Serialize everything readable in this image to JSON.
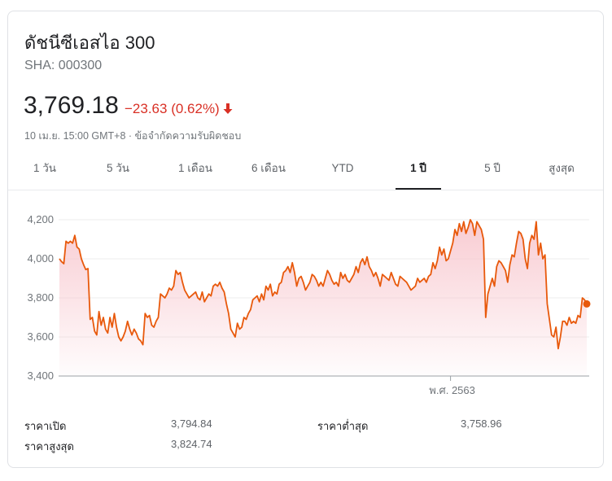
{
  "header": {
    "title": "ดัชนีซีเอสไอ 300",
    "ticker": "SHA: 000300",
    "price": "3,769.18",
    "change": "−23.63 (0.62%)",
    "meta": "10 เม.ย. 15:00 GMT+8 · ข้อจำกัดความรับผิดชอบ",
    "change_color": "#d93025"
  },
  "tabs": [
    {
      "label": "1 วัน",
      "active": false
    },
    {
      "label": "5 วัน",
      "active": false
    },
    {
      "label": "1 เดือน",
      "active": false
    },
    {
      "label": "6 เดือน",
      "active": false
    },
    {
      "label": "YTD",
      "active": false
    },
    {
      "label": "1 ปี",
      "active": true
    },
    {
      "label": "5 ปี",
      "active": false
    },
    {
      "label": "สูงสุด",
      "active": false
    }
  ],
  "stats": {
    "open_label": "ราคาเปิด",
    "open_value": "3,794.84",
    "high_label": "ราคาสูงสุด",
    "high_value": "3,824.74",
    "low_label": "ราคาต่ำสุด",
    "low_value": "3,758.96"
  },
  "chart_data": {
    "type": "area",
    "title": "",
    "xlabel": "",
    "ylabel": "",
    "ylim": [
      3400,
      4250
    ],
    "yticks": [
      3400,
      3600,
      3800,
      4000,
      4200
    ],
    "ytick_labels": [
      "3,400",
      "3,600",
      "3,800",
      "4,000",
      "4,200"
    ],
    "xtick_labels": [
      {
        "label": "พ.ศ. 2563",
        "index": 178
      }
    ],
    "grid": true,
    "line_color": "#e8590c",
    "fill_color": "#f8c9d0",
    "series": [
      {
        "values": [
          4000,
          3985,
          3975,
          4090,
          4080,
          4090,
          4080,
          4120,
          4060,
          4050,
          4000,
          3970,
          3945,
          3950,
          3690,
          3700,
          3630,
          3610,
          3730,
          3660,
          3700,
          3640,
          3620,
          3700,
          3650,
          3720,
          3650,
          3600,
          3580,
          3600,
          3630,
          3680,
          3640,
          3610,
          3640,
          3620,
          3590,
          3580,
          3560,
          3720,
          3700,
          3710,
          3660,
          3650,
          3680,
          3700,
          3820,
          3810,
          3800,
          3820,
          3850,
          3840,
          3860,
          3940,
          3920,
          3930,
          3880,
          3840,
          3820,
          3800,
          3810,
          3820,
          3830,
          3800,
          3790,
          3830,
          3780,
          3800,
          3820,
          3810,
          3860,
          3870,
          3860,
          3880,
          3850,
          3830,
          3770,
          3720,
          3640,
          3620,
          3600,
          3670,
          3640,
          3650,
          3700,
          3690,
          3720,
          3740,
          3790,
          3800,
          3810,
          3780,
          3820,
          3790,
          3860,
          3840,
          3870,
          3810,
          3830,
          3820,
          3870,
          3880,
          3930,
          3940,
          3960,
          3930,
          3980,
          3930,
          3860,
          3900,
          3910,
          3880,
          3840,
          3860,
          3880,
          3920,
          3910,
          3890,
          3860,
          3880,
          3860,
          3900,
          3940,
          3920,
          3890,
          3870,
          3880,
          3860,
          3930,
          3900,
          3920,
          3890,
          3880,
          3900,
          3920,
          3960,
          3930,
          3980,
          4000,
          3970,
          4010,
          3960,
          3940,
          3910,
          3930,
          3900,
          3860,
          3920,
          3910,
          3900,
          3890,
          3930,
          3900,
          3870,
          3860,
          3910,
          3900,
          3890,
          3880,
          3860,
          3840,
          3850,
          3860,
          3900,
          3880,
          3890,
          3900,
          3880,
          3910,
          3920,
          3980,
          3950,
          3990,
          4060,
          4020,
          4050,
          3990,
          4000,
          4040,
          4080,
          4150,
          4120,
          4180,
          4140,
          4190,
          4130,
          4160,
          4200,
          4180,
          4120,
          4190,
          4170,
          4150,
          4100,
          3700,
          3820,
          3860,
          3900,
          3860,
          3960,
          3990,
          3980,
          3960,
          3940,
          3880,
          3970,
          4020,
          4010,
          4080,
          4140,
          4130,
          4100,
          4000,
          3950,
          4080,
          4120,
          4100,
          4190,
          4020,
          4080,
          4000,
          4020,
          3770,
          3690,
          3610,
          3600,
          3650,
          3540,
          3600,
          3680,
          3680,
          3660,
          3700,
          3670,
          3680,
          3670,
          3710,
          3700,
          3800,
          3790,
          3769.18
        ]
      }
    ]
  }
}
